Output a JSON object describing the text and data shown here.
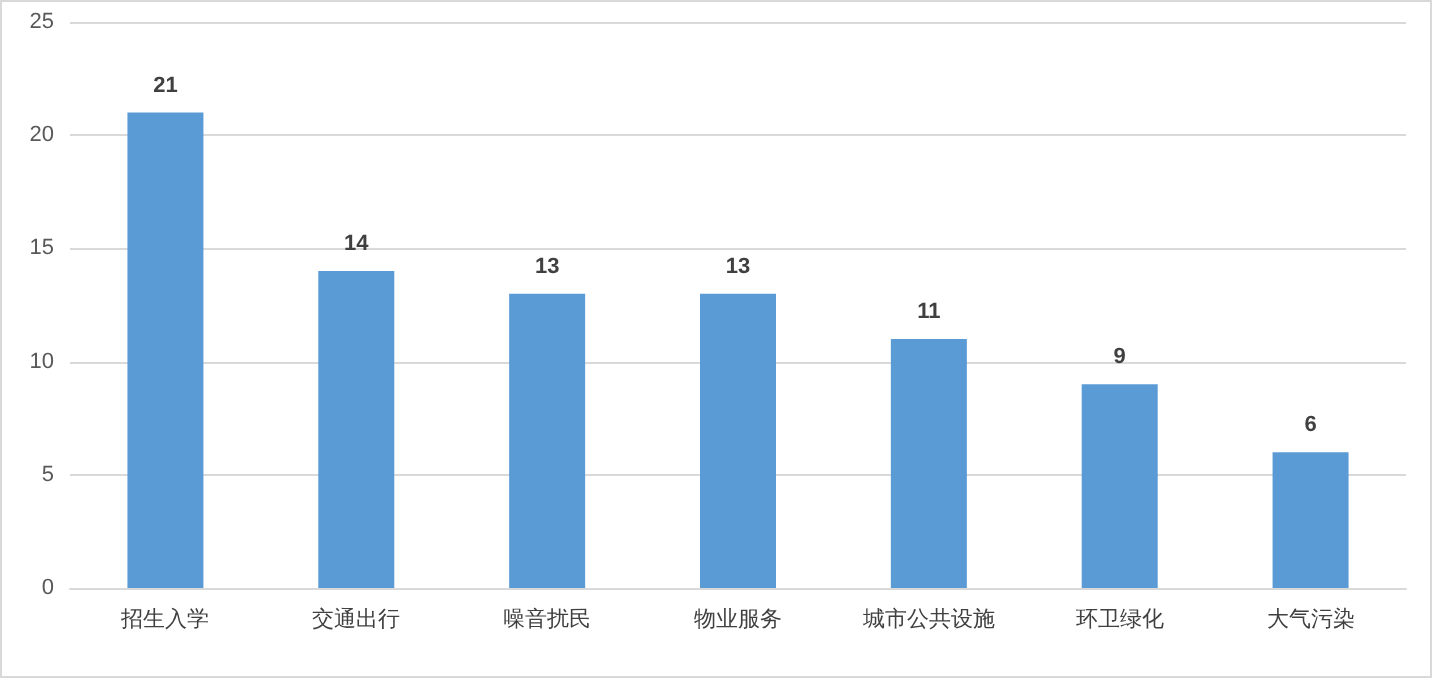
{
  "chart_data": {
    "type": "bar",
    "categories": [
      "招生入学",
      "交通出行",
      "噪音扰民",
      "物业服务",
      "城市公共设施",
      "环卫绿化",
      "大气污染"
    ],
    "values": [
      21,
      14,
      13,
      13,
      11,
      9,
      6
    ],
    "color": "#5b9bd5",
    "ylim": [
      0,
      25
    ],
    "yticks": [
      0,
      5,
      10,
      15,
      20,
      25
    ],
    "grid": "y",
    "data_labels": true
  }
}
